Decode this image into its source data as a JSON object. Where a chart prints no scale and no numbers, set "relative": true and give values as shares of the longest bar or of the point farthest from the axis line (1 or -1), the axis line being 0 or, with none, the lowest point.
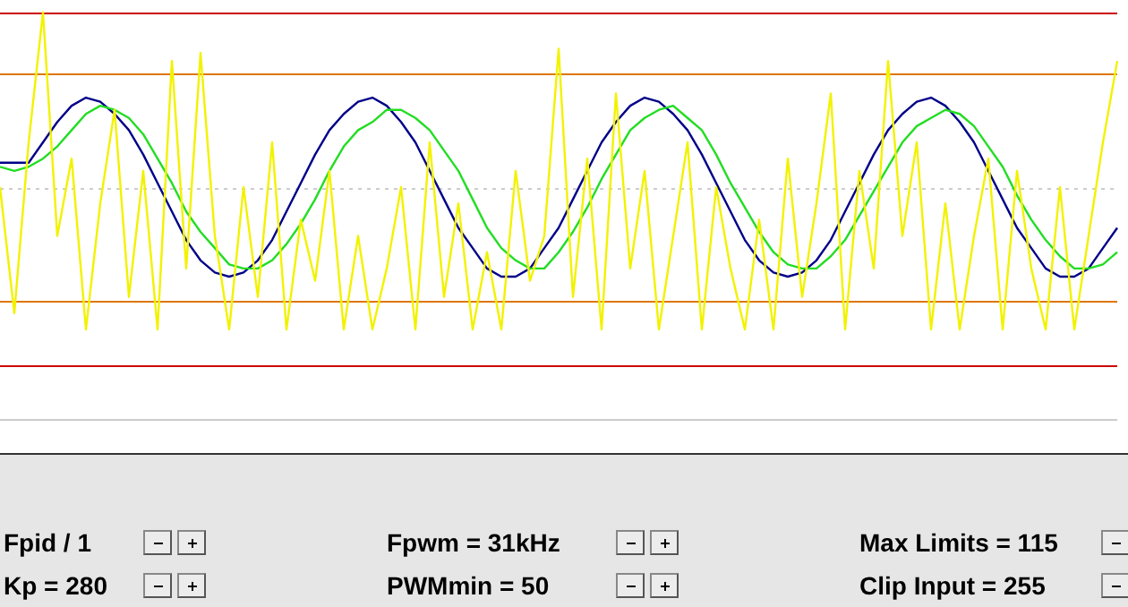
{
  "chart_data": {
    "type": "line",
    "relative": true,
    "tick_labels": false,
    "marker": "none",
    "categories": [
      null,
      null,
      null,
      null,
      null,
      null,
      null,
      null,
      null,
      null,
      null,
      null,
      null,
      null,
      null,
      null,
      null,
      null,
      null,
      null,
      null,
      null,
      null,
      null,
      null,
      null,
      null,
      null,
      null,
      null,
      null,
      null,
      null,
      null,
      null,
      null,
      null,
      null,
      null,
      null,
      null,
      null,
      null,
      null,
      null,
      null,
      null,
      null,
      null,
      null,
      null,
      null,
      null,
      null,
      null,
      null,
      null,
      null,
      null,
      null,
      null,
      null,
      null,
      null,
      null,
      null,
      null,
      null,
      null,
      null,
      null,
      null,
      null,
      null,
      null,
      null,
      null,
      null,
      null
    ],
    "series": [
      {
        "color": "#f2f200",
        "values": [
          0.57,
          0.26,
          0.68,
          1.0,
          0.45,
          0.64,
          0.22,
          0.53,
          0.76,
          0.3,
          0.61,
          0.22,
          0.88,
          0.37,
          0.9,
          0.45,
          0.22,
          0.57,
          0.3,
          0.68,
          0.22,
          0.49,
          0.34,
          0.61,
          0.22,
          0.45,
          0.22,
          0.37,
          0.57,
          0.22,
          0.68,
          0.3,
          0.53,
          0.22,
          0.41,
          0.22,
          0.61,
          0.34,
          0.45,
          0.91,
          0.3,
          0.64,
          0.22,
          0.8,
          0.37,
          0.61,
          0.22,
          0.45,
          0.68,
          0.22,
          0.57,
          0.37,
          0.22,
          0.49,
          0.22,
          0.64,
          0.3,
          0.53,
          0.8,
          0.22,
          0.61,
          0.37,
          0.88,
          0.45,
          0.68,
          0.22,
          0.53,
          0.22,
          0.45,
          0.64,
          0.22,
          0.61,
          0.37,
          0.22,
          0.57,
          0.22,
          0.45,
          0.68,
          0.88
        ]
      },
      {
        "color": "#22dd22",
        "values": [
          0.62,
          0.61,
          0.62,
          0.64,
          0.67,
          0.71,
          0.75,
          0.77,
          0.76,
          0.74,
          0.7,
          0.64,
          0.58,
          0.51,
          0.46,
          0.42,
          0.38,
          0.37,
          0.37,
          0.39,
          0.43,
          0.48,
          0.54,
          0.61,
          0.67,
          0.71,
          0.73,
          0.76,
          0.76,
          0.74,
          0.71,
          0.66,
          0.61,
          0.54,
          0.47,
          0.42,
          0.39,
          0.37,
          0.37,
          0.41,
          0.46,
          0.52,
          0.59,
          0.65,
          0.71,
          0.74,
          0.76,
          0.77,
          0.74,
          0.71,
          0.65,
          0.58,
          0.52,
          0.46,
          0.41,
          0.38,
          0.37,
          0.37,
          0.4,
          0.44,
          0.5,
          0.56,
          0.62,
          0.68,
          0.72,
          0.74,
          0.76,
          0.75,
          0.72,
          0.67,
          0.62,
          0.55,
          0.49,
          0.44,
          0.4,
          0.37,
          0.37,
          0.38,
          0.41
        ]
      },
      {
        "color": "#000088",
        "values": [
          0.63,
          0.63,
          0.63,
          0.68,
          0.73,
          0.77,
          0.79,
          0.78,
          0.75,
          0.71,
          0.65,
          0.58,
          0.51,
          0.44,
          0.39,
          0.36,
          0.35,
          0.36,
          0.39,
          0.44,
          0.51,
          0.58,
          0.65,
          0.71,
          0.75,
          0.78,
          0.79,
          0.77,
          0.73,
          0.68,
          0.61,
          0.54,
          0.47,
          0.42,
          0.37,
          0.35,
          0.35,
          0.37,
          0.42,
          0.47,
          0.54,
          0.61,
          0.68,
          0.73,
          0.77,
          0.79,
          0.78,
          0.75,
          0.71,
          0.65,
          0.58,
          0.51,
          0.44,
          0.39,
          0.36,
          0.35,
          0.36,
          0.39,
          0.44,
          0.51,
          0.58,
          0.65,
          0.71,
          0.75,
          0.78,
          0.79,
          0.77,
          0.73,
          0.68,
          0.61,
          0.54,
          0.47,
          0.42,
          0.37,
          0.35,
          0.35,
          0.37,
          0.42,
          0.47
        ]
      }
    ],
    "ref_lines": [
      {
        "axis": "y",
        "value": 1.0,
        "color": "#cc0000"
      },
      {
        "axis": "y",
        "value": 0.85,
        "color": "#dd7700"
      },
      {
        "axis": "y",
        "value": 0.57,
        "color": "#cccccc",
        "line_style": "dotted"
      },
      {
        "axis": "y",
        "value": 0.29,
        "color": "#dd7700"
      },
      {
        "axis": "y",
        "value": 0.13,
        "color": "#cc0000"
      }
    ],
    "annotations": [
      "Fpid / 1",
      "Kp = 280",
      "Fpwm = 31kHz",
      "PWMmin = 50",
      "Max Limits = 115",
      "Clip Input = 255"
    ]
  }
}
